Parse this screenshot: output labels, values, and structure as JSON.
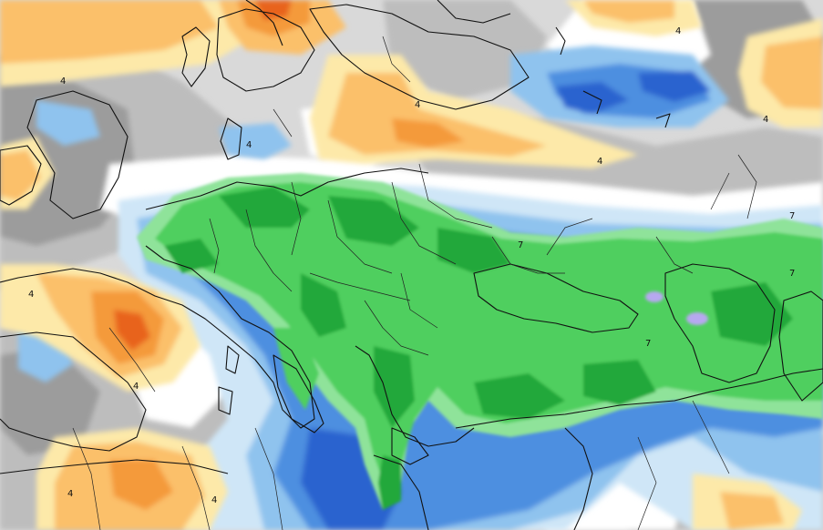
{
  "map": {
    "colors": {
      "grey_dark": "#9c9c9c",
      "grey_mid": "#bdbdbd",
      "grey_light": "#d9d9d9",
      "white": "#ffffff",
      "blue_pale": "#cfe6f7",
      "blue_light": "#8fc3ee",
      "blue_mid": "#4d8fe0",
      "blue_dark": "#2a63cf",
      "green_light": "#8fe39a",
      "green_mid": "#4fcf5e",
      "green_dark": "#23a83a",
      "lavender": "#b7a8f0",
      "yellow_pale": "#fde9a9",
      "orange_light": "#fbc06a",
      "orange_mid": "#f49a3a",
      "orange_dark": "#e8641e"
    },
    "contour_labels": [
      {
        "text": "4"
      },
      {
        "text": "4"
      },
      {
        "text": "4"
      },
      {
        "text": "4"
      },
      {
        "text": "4"
      },
      {
        "text": "4"
      },
      {
        "text": "4"
      },
      {
        "text": "4"
      },
      {
        "text": "4"
      },
      {
        "text": "7"
      },
      {
        "text": "7"
      },
      {
        "text": "7"
      },
      {
        "text": "7"
      },
      {
        "text": "4"
      }
    ]
  }
}
